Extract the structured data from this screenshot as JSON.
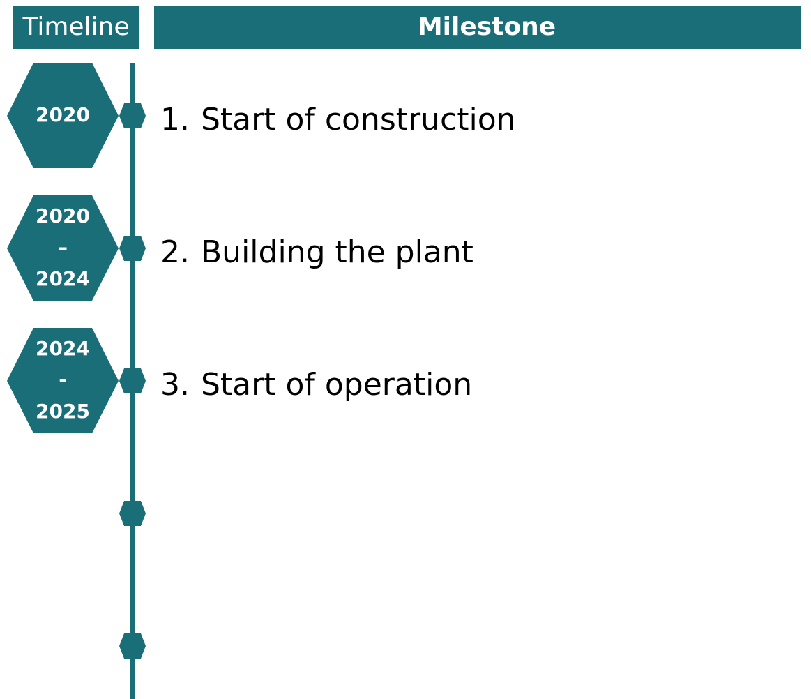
{
  "header": {
    "timeline": "Timeline",
    "milestone": "Milestone"
  },
  "items": [
    {
      "period": [
        "2020"
      ],
      "number": "1.",
      "milestone": "Start of construction"
    },
    {
      "period": [
        "2020",
        "–",
        "2024"
      ],
      "number": "2.",
      "milestone": "Building the plant"
    },
    {
      "period": [
        "2024",
        "-",
        "2025"
      ],
      "number": "3.",
      "milestone": "Start of operation"
    }
  ]
}
